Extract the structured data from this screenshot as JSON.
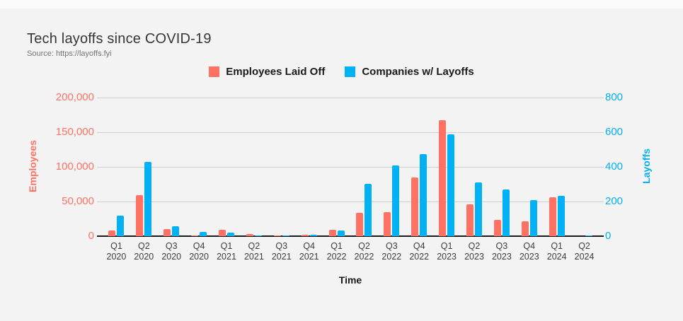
{
  "page": {
    "background": "#f3f3f4"
  },
  "header": {
    "title": "Tech layoffs since COVID-19",
    "source": "Source: https://layoffs.fyi"
  },
  "legend": [
    {
      "label": "Employees Laid Off",
      "color": "#ff7163"
    },
    {
      "label": "Companies w/ Layoffs",
      "color": "#00b1f5"
    }
  ],
  "chart_data": {
    "type": "bar",
    "title": "Tech layoffs since COVID-19",
    "subtitle": "Source: https://layoffs.fyi",
    "xlabel": "Time",
    "grid": true,
    "legend_position": "top",
    "y_left": {
      "label": "Employees",
      "color": "#ff7163",
      "max": 200000,
      "ticks": [
        "200,000",
        "150,000",
        "100,000",
        "50,000",
        "0"
      ]
    },
    "y_right": {
      "label": "Layoffs",
      "color": "#00b1f5",
      "max": 800,
      "ticks": [
        "800",
        "600",
        "400",
        "200",
        "0"
      ]
    },
    "categories": [
      {
        "quarter": "Q1",
        "year": "2020"
      },
      {
        "quarter": "Q2",
        "year": "2020"
      },
      {
        "quarter": "Q3",
        "year": "2020"
      },
      {
        "quarter": "Q4",
        "year": "2020"
      },
      {
        "quarter": "Q1",
        "year": "2021"
      },
      {
        "quarter": "Q2",
        "year": "2021"
      },
      {
        "quarter": "Q3",
        "year": "2021"
      },
      {
        "quarter": "Q4",
        "year": "2021"
      },
      {
        "quarter": "Q1",
        "year": "2022"
      },
      {
        "quarter": "Q2",
        "year": "2022"
      },
      {
        "quarter": "Q3",
        "year": "2022"
      },
      {
        "quarter": "Q4",
        "year": "2022"
      },
      {
        "quarter": "Q1",
        "year": "2023"
      },
      {
        "quarter": "Q2",
        "year": "2023"
      },
      {
        "quarter": "Q3",
        "year": "2023"
      },
      {
        "quarter": "Q4",
        "year": "2023"
      },
      {
        "quarter": "Q1",
        "year": "2024"
      },
      {
        "quarter": "Q2",
        "year": "2024"
      }
    ],
    "series": [
      {
        "name": "Employees Laid Off",
        "axis": "left",
        "color": "#ff7163",
        "values": [
          8500,
          59000,
          10200,
          1300,
          8700,
          2800,
          1500,
          2300,
          9500,
          34000,
          34500,
          84500,
          167500,
          45500,
          23500,
          21500,
          56000,
          400
        ]
      },
      {
        "name": "Companies w/ Layoffs",
        "axis": "right",
        "color": "#00b1f5",
        "values": [
          118,
          428,
          58,
          23,
          20,
          6,
          6,
          8,
          32,
          300,
          410,
          475,
          588,
          312,
          271,
          208,
          232,
          5
        ]
      }
    ]
  }
}
